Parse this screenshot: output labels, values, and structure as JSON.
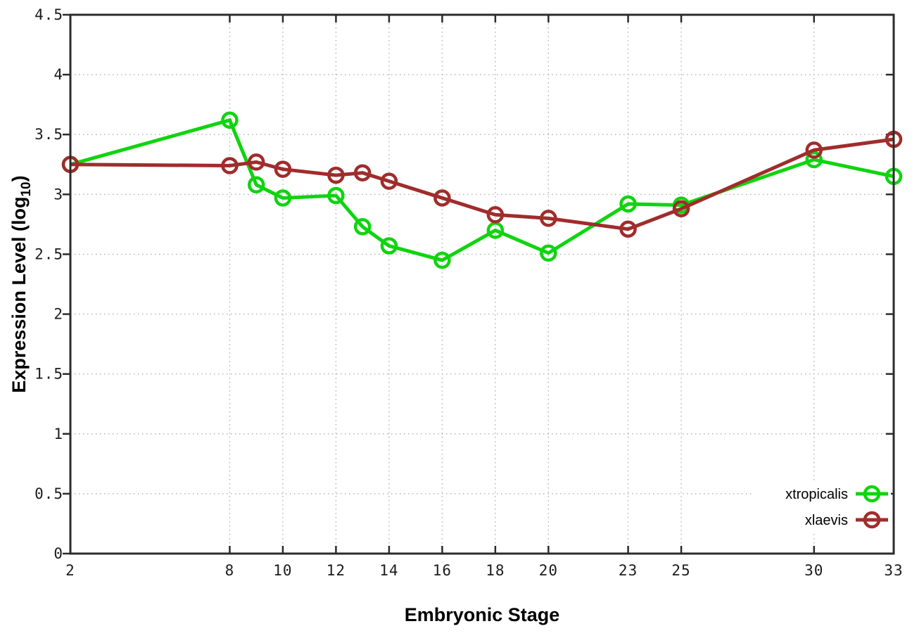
{
  "chart_data": {
    "type": "line",
    "title": "",
    "xlabel": "Embryonic Stage",
    "ylabel": {
      "text": "Expression Level (log",
      "subscript": "10",
      "suffix": ")"
    },
    "x": [
      2,
      8,
      9,
      10,
      12,
      13,
      14,
      16,
      18,
      20,
      23,
      25,
      30,
      33
    ],
    "series": [
      {
        "name": "xtropicalis",
        "color": "#0fd40f",
        "values": [
          3.25,
          3.62,
          3.08,
          2.97,
          2.99,
          2.73,
          2.57,
          2.45,
          2.7,
          2.51,
          2.92,
          2.91,
          3.29,
          3.15
        ]
      },
      {
        "name": "xlaevis",
        "color": "#a02c2c",
        "values": [
          3.25,
          3.24,
          3.27,
          3.21,
          3.16,
          3.18,
          3.11,
          2.97,
          2.83,
          2.8,
          2.71,
          2.88,
          3.37,
          3.46
        ]
      }
    ],
    "xticks": [
      {
        "v": 2,
        "label": "2"
      },
      {
        "v": 8,
        "label": "8"
      },
      {
        "v": 10,
        "label": "10"
      },
      {
        "v": 12,
        "label": "12"
      },
      {
        "v": 14,
        "label": "14"
      },
      {
        "v": 16,
        "label": "16"
      },
      {
        "v": 18,
        "label": "18"
      },
      {
        "v": 20,
        "label": "20"
      },
      {
        "v": 23,
        "label": "23"
      },
      {
        "v": 25,
        "label": "25"
      },
      {
        "v": 30,
        "label": "30"
      },
      {
        "v": 33,
        "label": "33"
      }
    ],
    "yticks": [
      {
        "v": 0,
        "label": "0"
      },
      {
        "v": 0.5,
        "label": "0.5"
      },
      {
        "v": 1,
        "label": "1"
      },
      {
        "v": 1.5,
        "label": "1.5"
      },
      {
        "v": 2,
        "label": "2"
      },
      {
        "v": 2.5,
        "label": "2.5"
      },
      {
        "v": 3,
        "label": "3"
      },
      {
        "v": 3.5,
        "label": "3.5"
      },
      {
        "v": 4,
        "label": "4"
      },
      {
        "v": 4.5,
        "label": "4.5"
      }
    ],
    "xlim": [
      2,
      33
    ],
    "ylim": [
      0,
      4.5
    ],
    "grid": true,
    "legend_position": "bottom-right"
  },
  "style": {
    "background": "#ffffff",
    "axis_color": "#2b2b2b",
    "grid_color": "#b5b5b5",
    "tick_label_color": "#1c1c1c",
    "line_width": 5,
    "marker_radius": 10,
    "marker_stroke": 4.5
  }
}
